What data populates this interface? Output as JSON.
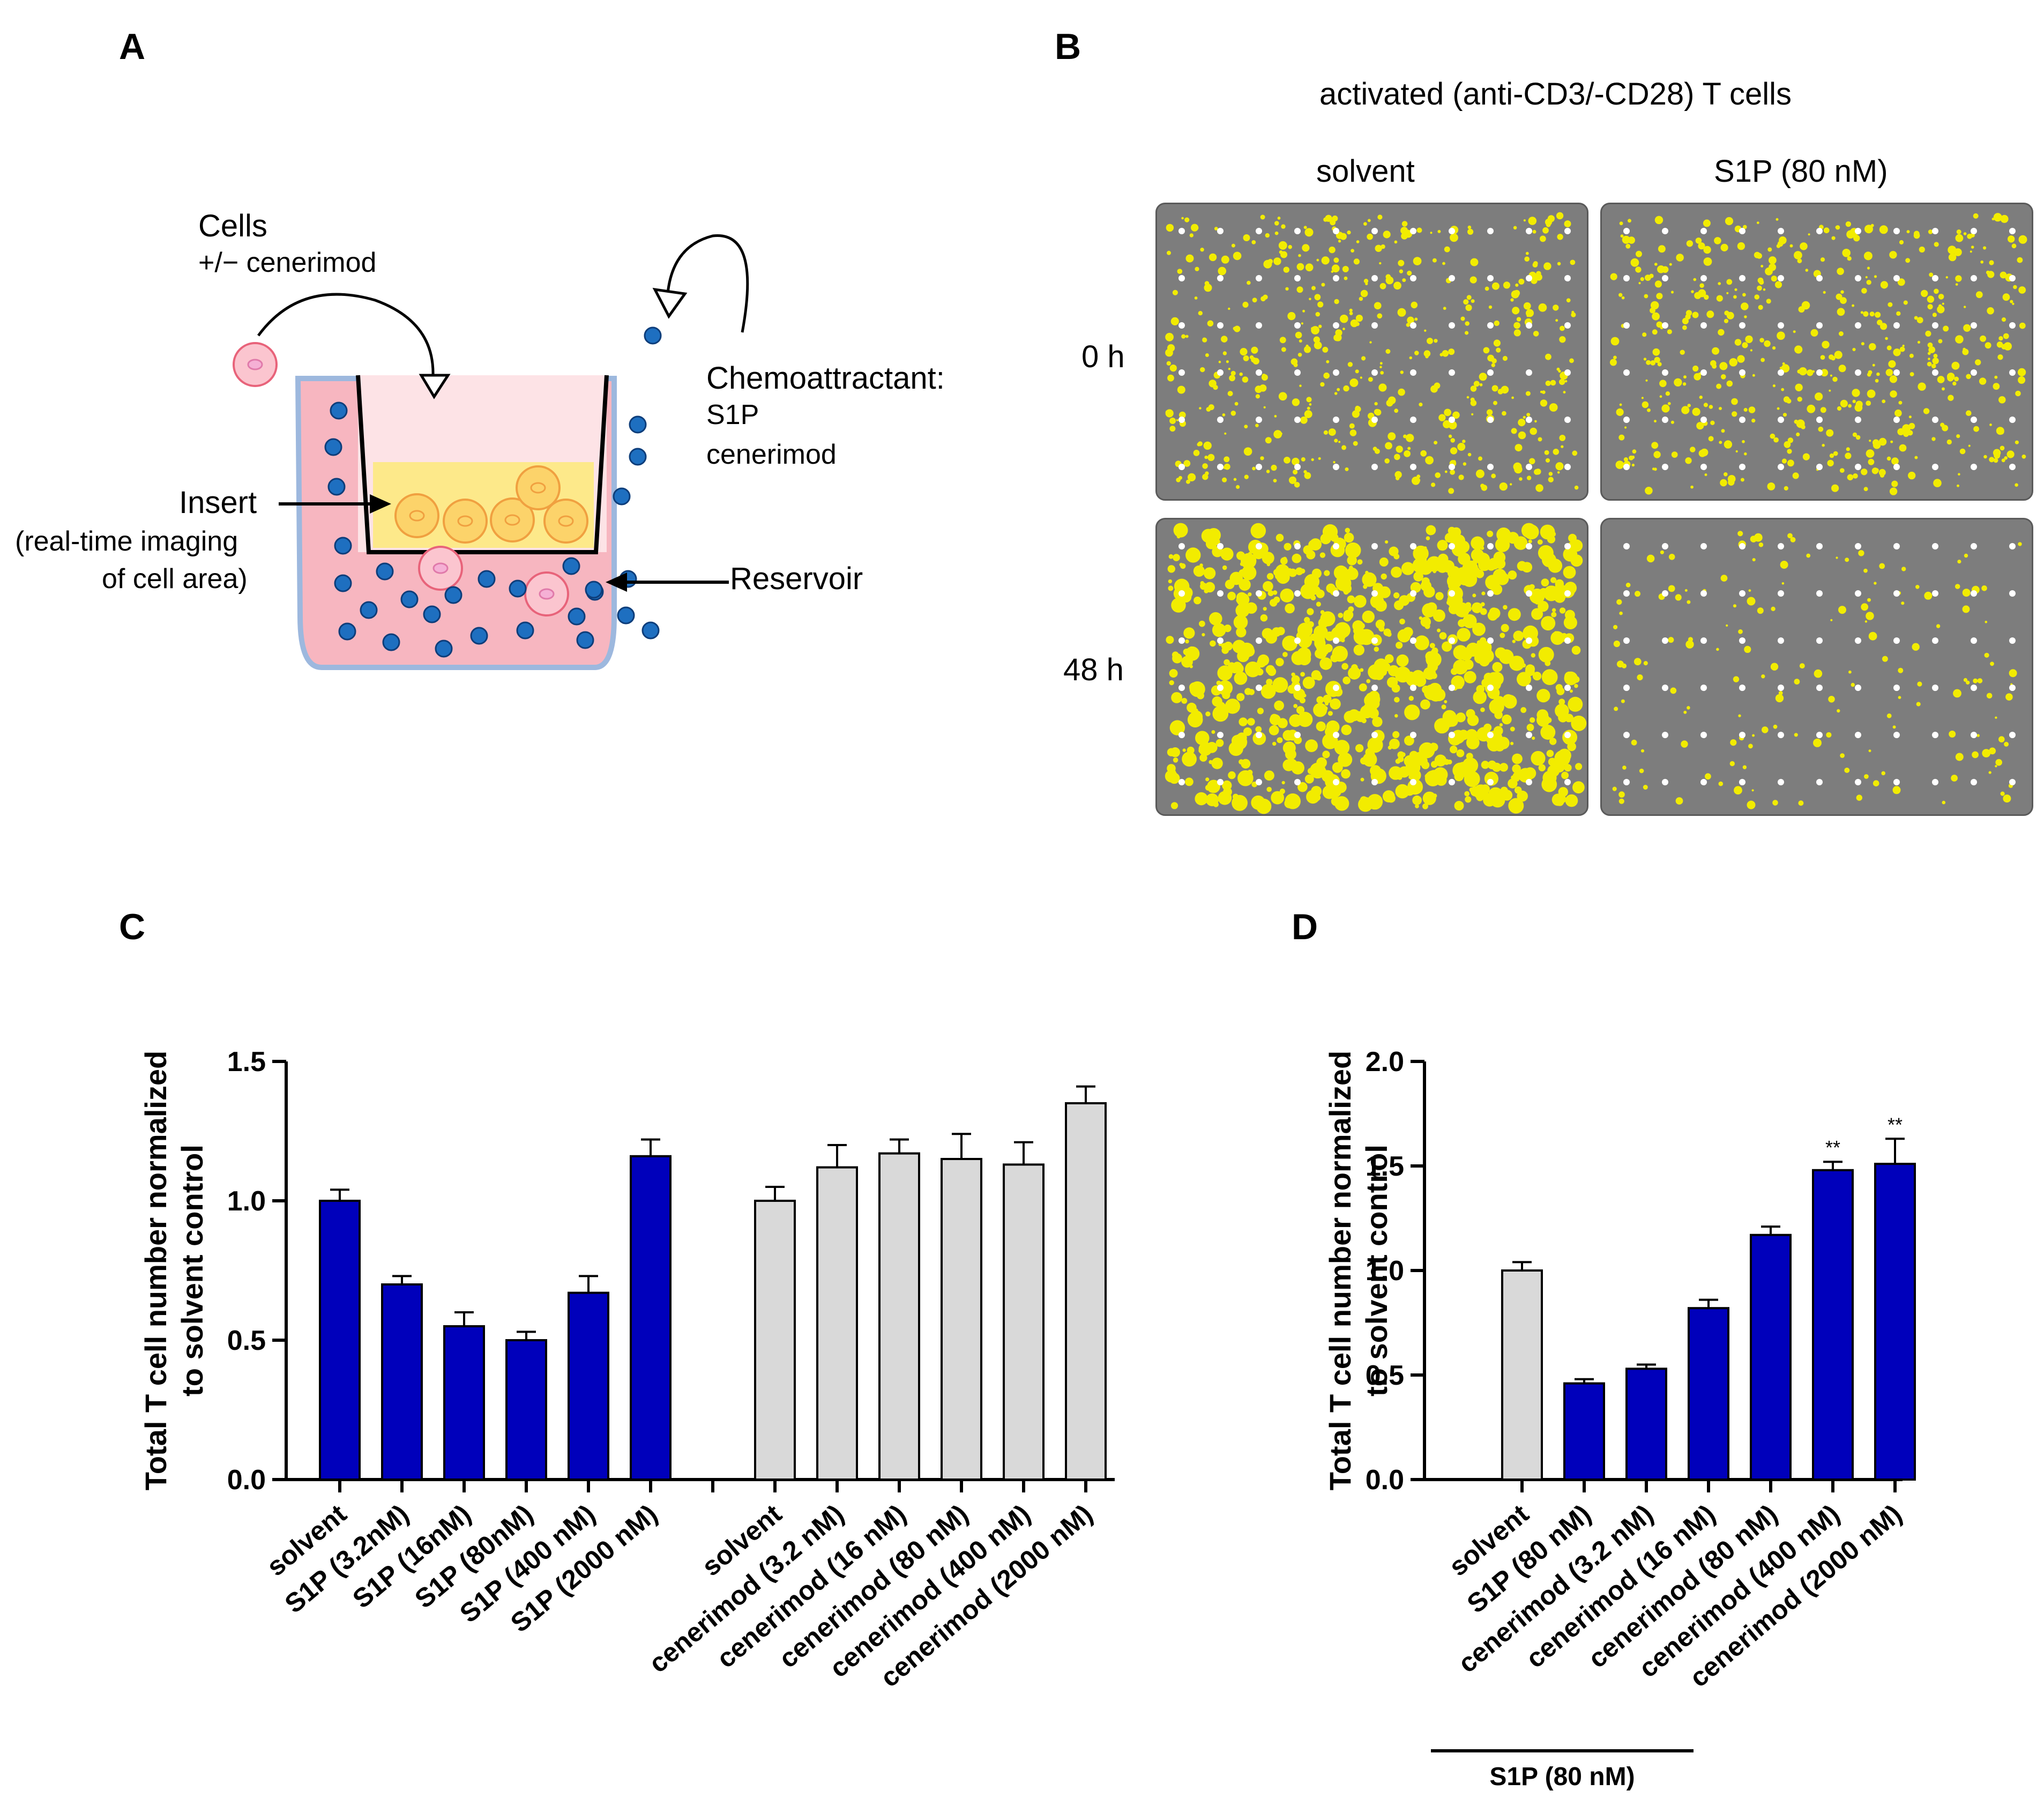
{
  "panels": {
    "a": {
      "letter": "A",
      "cells_label": "Cells",
      "cells_sub": "+/− cenerimod",
      "chemo_title": "Chemoattractant:",
      "chemo_items": [
        "S1P",
        "cenerimod"
      ],
      "insert_label": "Insert",
      "insert_sub1": "(real-time imaging",
      "insert_sub2": "of cell area)",
      "reservoir_label": "Reservoir"
    },
    "b": {
      "letter": "B",
      "title": "activated (anti-CD3/-CD28) T cells",
      "col_labels": [
        "solvent",
        "S1P (80 nM)"
      ],
      "row_labels": [
        "0 h",
        "48 h"
      ],
      "density": [
        [
          0.55,
          0.55
        ],
        [
          0.95,
          0.18
        ]
      ]
    },
    "c": {
      "letter": "C"
    },
    "d": {
      "letter": "D",
      "bracket_label": "S1P (80 nM)"
    }
  },
  "colors": {
    "blue_bar": "#0000bb",
    "gray_bar": "#d9d9d9",
    "yellow": "#f2ec00",
    "insert_pink": "#f9c9cf",
    "well_pink": "#f7b6c0",
    "dot_blue": "#1e6fc0"
  },
  "chart_data": [
    {
      "id": "C",
      "type": "bar",
      "ylabel_lines": [
        "Total T cell number normalized",
        "to solvent control"
      ],
      "ylim": [
        0,
        1.5
      ],
      "yticks": [
        "0.0",
        "0.5",
        "1.0",
        "1.5"
      ],
      "ytick_values": [
        0,
        0.5,
        1.0,
        1.5
      ],
      "series": [
        {
          "name": "S1P",
          "color": "#0000bb",
          "categories": [
            "solvent",
            "S1P (3.2nM)",
            "S1P (16nM)",
            "S1P (80nM)",
            "S1P (400 nM)",
            "S1P (2000 nM)"
          ],
          "values": [
            1.0,
            0.7,
            0.55,
            0.5,
            0.67,
            1.16
          ],
          "errors": [
            0.04,
            0.03,
            0.05,
            0.03,
            0.06,
            0.06
          ]
        },
        {
          "name": "cenerimod",
          "color": "#d9d9d9",
          "categories": [
            "solvent",
            "cenerimod (3.2 nM)",
            "cenerimod (16 nM)",
            "cenerimod (80 nM)",
            "cenerimod (400 nM)",
            "cenerimod (2000 nM)"
          ],
          "values": [
            1.0,
            1.12,
            1.17,
            1.15,
            1.13,
            1.35
          ],
          "errors": [
            0.05,
            0.08,
            0.05,
            0.09,
            0.08,
            0.06
          ]
        }
      ]
    },
    {
      "id": "D",
      "type": "bar",
      "ylabel_lines": [
        "Total T cell number normalized",
        "to solvent control"
      ],
      "ylim": [
        0,
        2.0
      ],
      "yticks": [
        "0.0",
        "0.5",
        "1.0",
        "1.5",
        "2.0"
      ],
      "ytick_values": [
        0,
        0.5,
        1.0,
        1.5,
        2.0
      ],
      "categories": [
        "solvent",
        "S1P (80 nM)",
        "cenerimod (3.2 nM)",
        "cenerimod (16 nM)",
        "cenerimod (80 nM)",
        "cenerimod (400 nM)",
        "cenerimod (2000 nM)"
      ],
      "values": [
        1.0,
        0.46,
        0.53,
        0.82,
        1.17,
        1.48,
        1.51
      ],
      "errors": [
        0.04,
        0.02,
        0.02,
        0.04,
        0.04,
        0.04,
        0.12
      ],
      "colors": [
        "#d9d9d9",
        "#0000bb",
        "#0000bb",
        "#0000bb",
        "#0000bb",
        "#0000bb",
        "#0000bb"
      ],
      "annotations": [
        "",
        "",
        "",
        "",
        "",
        "**",
        "**"
      ]
    }
  ]
}
